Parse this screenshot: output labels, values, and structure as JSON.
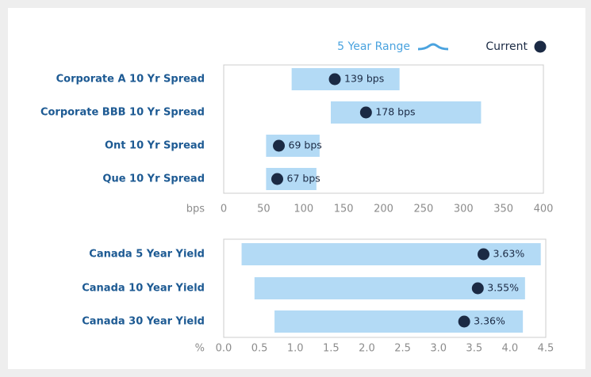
{
  "legend": {
    "range": "5 Year Range",
    "current": "Current",
    "range_color": "#4aa3df",
    "current_color": "#1b2a44"
  },
  "chart_data": [
    {
      "type": "range_dot",
      "xlabel": "bps",
      "categories": [
        "Corporate A 10 Yr Spread",
        "Corporate BBB 10 Yr Spread",
        "Ont 10 Yr Spread",
        "Que 10 Yr Spread"
      ],
      "series": [
        {
          "name": "5 Year Range",
          "color": "#b3daf5",
          "low": [
            85,
            134,
            53,
            53
          ],
          "high": [
            220,
            322,
            120,
            116
          ]
        },
        {
          "name": "Current",
          "color": "#1b2a44",
          "values": [
            139,
            178,
            69,
            67
          ],
          "value_labels": [
            "139 bps",
            "178 bps",
            "69 bps",
            "67 bps"
          ]
        }
      ],
      "xlim": [
        0,
        400
      ],
      "xticks": [
        0,
        50,
        100,
        150,
        200,
        250,
        300,
        350,
        400
      ]
    },
    {
      "type": "range_dot",
      "xlabel": "%",
      "categories": [
        "Canada 5 Year Yield",
        "Canada 10 Year Yield",
        "Canada 30 Year Yield"
      ],
      "series": [
        {
          "color": "#b3daf5",
          "low": [
            0.25,
            0.43,
            0.71
          ],
          "high": [
            4.43,
            4.21,
            4.18
          ]
        },
        {
          "color": "#1b2a44",
          "values": [
            3.63,
            3.55,
            3.36
          ],
          "value_labels": [
            "3.63%",
            "3.55%",
            "3.36%"
          ]
        }
      ],
      "xlim": [
        0,
        4.5
      ],
      "xticks": [
        {
          "value": 0,
          "label": "0.0"
        },
        0.5,
        {
          "value": 1,
          "label": "1.0"
        },
        1.5,
        {
          "value": 2,
          "label": "2.0"
        },
        2.5,
        {
          "value": 3,
          "label": "3.0"
        },
        3.5,
        {
          "value": 4,
          "label": "4.0"
        },
        4.5
      ]
    }
  ]
}
